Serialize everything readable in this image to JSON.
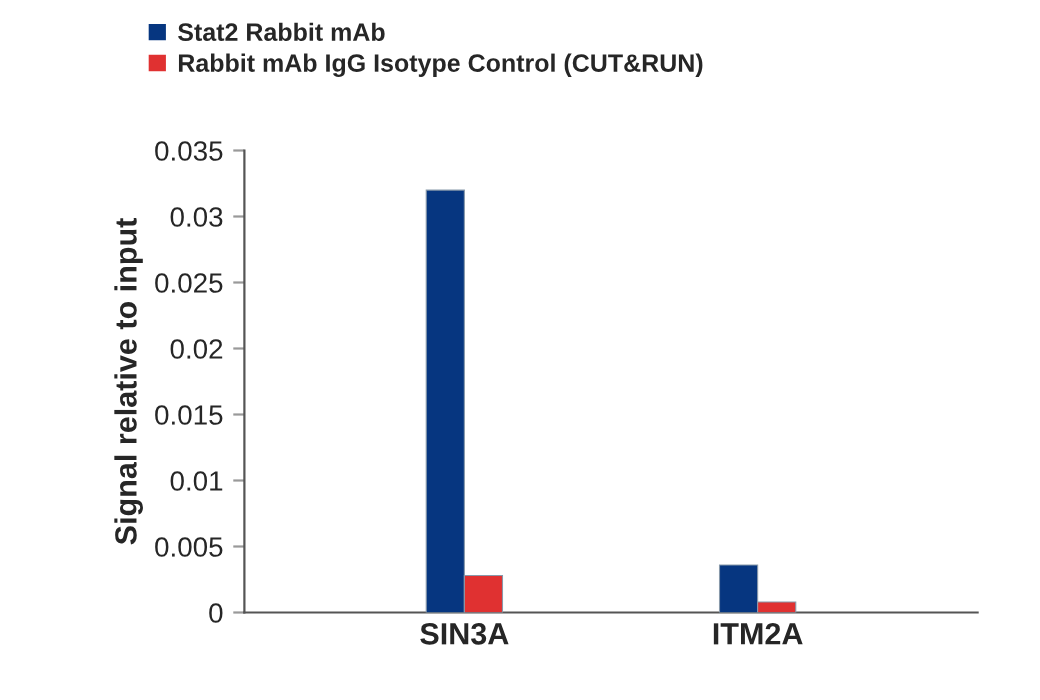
{
  "chart_data": {
    "type": "bar",
    "ylabel": "Signal relative to input",
    "categories": [
      "SIN3A",
      "ITM2A"
    ],
    "series": [
      {
        "name": "Stat2 Rabbit mAb",
        "color": "#063680",
        "values": [
          0.032,
          0.0036
        ]
      },
      {
        "name": "Rabbit mAb IgG Isotype Control (CUT&RUN)",
        "color": "#e03131",
        "values": [
          0.0028,
          0.0008
        ]
      }
    ],
    "ylim": [
      0,
      0.035
    ],
    "yticks": [
      {
        "value": 0,
        "label": "0"
      },
      0.005,
      0.01,
      0.015,
      0.02,
      0.025,
      0.03,
      0.035
    ],
    "grid": false,
    "legend": "top"
  }
}
